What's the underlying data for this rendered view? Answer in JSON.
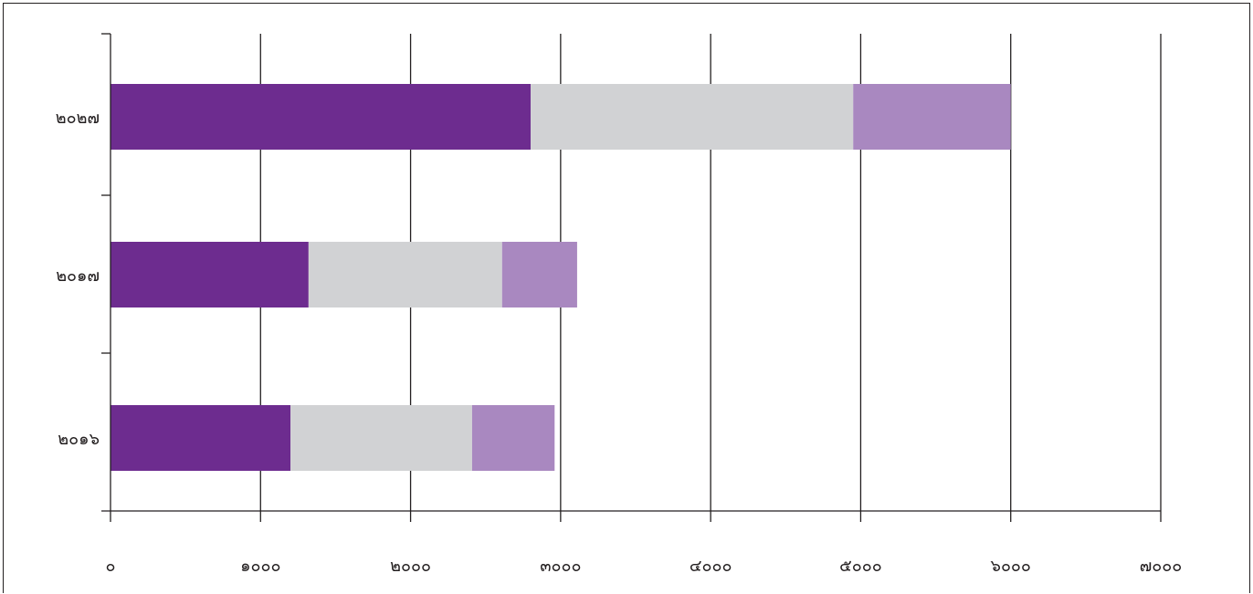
{
  "chart_data": {
    "type": "bar",
    "orientation": "horizontal",
    "stacked": true,
    "title": "",
    "xlabel": "",
    "ylabel": "",
    "categories": [
      "๒๐๑๖",
      "๒๐๑๗",
      "๒๐๒๗"
    ],
    "x_ticks": [
      0,
      1000,
      2000,
      3000,
      4000,
      5000,
      6000,
      7000
    ],
    "x_tick_labels": [
      "๐",
      "๑๐๐๐",
      "๒๐๐๐",
      "๓๐๐๐",
      "๔๐๐๐",
      "๕๐๐๐",
      "๖๐๐๐",
      "๗๐๐๐"
    ],
    "xlim": [
      0,
      7000
    ],
    "grid": "vertical",
    "legend": "none",
    "series": [
      {
        "color": "#6d2c8f",
        "values": [
          1200,
          1320,
          2800
        ]
      },
      {
        "color": "#d1d2d4",
        "values": [
          1210,
          1290,
          2150
        ]
      },
      {
        "color": "#a988c0",
        "values": [
          550,
          500,
          1050
        ]
      }
    ]
  }
}
